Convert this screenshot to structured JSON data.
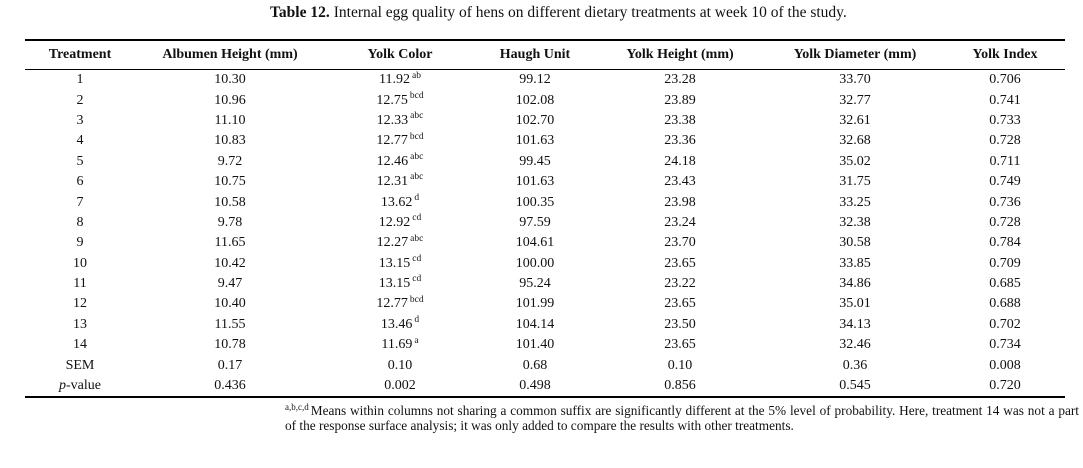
{
  "page": {
    "background_color": "#ffffff",
    "text_color": "#111111"
  },
  "caption": {
    "label": "Table 12.",
    "text": "Internal egg quality of hens on different dietary treatments at week 10 of the study."
  },
  "table": {
    "columns": [
      "Treatment",
      "Albumen Height (mm)",
      "Yolk Color",
      "Haugh Unit",
      "Yolk Height (mm)",
      "Yolk Diameter (mm)",
      "Yolk Index"
    ],
    "rows": [
      {
        "treatment": "1",
        "albumen_height": "10.30",
        "yolk_color": "11.92",
        "yolk_color_sup": "ab",
        "haugh_unit": "99.12",
        "yolk_height": "23.28",
        "yolk_diameter": "33.70",
        "yolk_index": "0.706"
      },
      {
        "treatment": "2",
        "albumen_height": "10.96",
        "yolk_color": "12.75",
        "yolk_color_sup": "bcd",
        "haugh_unit": "102.08",
        "yolk_height": "23.89",
        "yolk_diameter": "32.77",
        "yolk_index": "0.741"
      },
      {
        "treatment": "3",
        "albumen_height": "11.10",
        "yolk_color": "12.33",
        "yolk_color_sup": "abc",
        "haugh_unit": "102.70",
        "yolk_height": "23.38",
        "yolk_diameter": "32.61",
        "yolk_index": "0.733"
      },
      {
        "treatment": "4",
        "albumen_height": "10.83",
        "yolk_color": "12.77",
        "yolk_color_sup": "bcd",
        "haugh_unit": "101.63",
        "yolk_height": "23.36",
        "yolk_diameter": "32.68",
        "yolk_index": "0.728"
      },
      {
        "treatment": "5",
        "albumen_height": "9.72",
        "yolk_color": "12.46",
        "yolk_color_sup": "abc",
        "haugh_unit": "99.45",
        "yolk_height": "24.18",
        "yolk_diameter": "35.02",
        "yolk_index": "0.711"
      },
      {
        "treatment": "6",
        "albumen_height": "10.75",
        "yolk_color": "12.31",
        "yolk_color_sup": "abc",
        "haugh_unit": "101.63",
        "yolk_height": "23.43",
        "yolk_diameter": "31.75",
        "yolk_index": "0.749"
      },
      {
        "treatment": "7",
        "albumen_height": "10.58",
        "yolk_color": "13.62",
        "yolk_color_sup": "d",
        "haugh_unit": "100.35",
        "yolk_height": "23.98",
        "yolk_diameter": "33.25",
        "yolk_index": "0.736"
      },
      {
        "treatment": "8",
        "albumen_height": "9.78",
        "yolk_color": "12.92",
        "yolk_color_sup": "cd",
        "haugh_unit": "97.59",
        "yolk_height": "23.24",
        "yolk_diameter": "32.38",
        "yolk_index": "0.728"
      },
      {
        "treatment": "9",
        "albumen_height": "11.65",
        "yolk_color": "12.27",
        "yolk_color_sup": "abc",
        "haugh_unit": "104.61",
        "yolk_height": "23.70",
        "yolk_diameter": "30.58",
        "yolk_index": "0.784"
      },
      {
        "treatment": "10",
        "albumen_height": "10.42",
        "yolk_color": "13.15",
        "yolk_color_sup": "cd",
        "haugh_unit": "100.00",
        "yolk_height": "23.65",
        "yolk_diameter": "33.85",
        "yolk_index": "0.709"
      },
      {
        "treatment": "11",
        "albumen_height": "9.47",
        "yolk_color": "13.15",
        "yolk_color_sup": "cd",
        "haugh_unit": "95.24",
        "yolk_height": "23.22",
        "yolk_diameter": "34.86",
        "yolk_index": "0.685"
      },
      {
        "treatment": "12",
        "albumen_height": "10.40",
        "yolk_color": "12.77",
        "yolk_color_sup": "bcd",
        "haugh_unit": "101.99",
        "yolk_height": "23.65",
        "yolk_diameter": "35.01",
        "yolk_index": "0.688"
      },
      {
        "treatment": "13",
        "albumen_height": "11.55",
        "yolk_color": "13.46",
        "yolk_color_sup": "d",
        "haugh_unit": "104.14",
        "yolk_height": "23.50",
        "yolk_diameter": "34.13",
        "yolk_index": "0.702"
      },
      {
        "treatment": "14",
        "albumen_height": "10.78",
        "yolk_color": "11.69",
        "yolk_color_sup": "a",
        "haugh_unit": "101.40",
        "yolk_height": "23.65",
        "yolk_diameter": "32.46",
        "yolk_index": "0.734"
      },
      {
        "treatment": "SEM",
        "albumen_height": "0.17",
        "yolk_color": "0.10",
        "yolk_color_sup": "",
        "haugh_unit": "0.68",
        "yolk_height": "0.10",
        "yolk_diameter": "0.36",
        "yolk_index": "0.008"
      },
      {
        "treatment": "p-value",
        "albumen_height": "0.436",
        "yolk_color": "0.002",
        "yolk_color_sup": "",
        "haugh_unit": "0.498",
        "yolk_height": "0.856",
        "yolk_diameter": "0.545",
        "yolk_index": "0.720"
      }
    ]
  },
  "footnote": {
    "sup": "a,b,c,d",
    "text": "Means within columns not sharing a common suffix are significantly different at the 5% level of probability. Here, treatment 14 was not a part of the response surface analysis; it was only added to compare the results with other treatments."
  }
}
